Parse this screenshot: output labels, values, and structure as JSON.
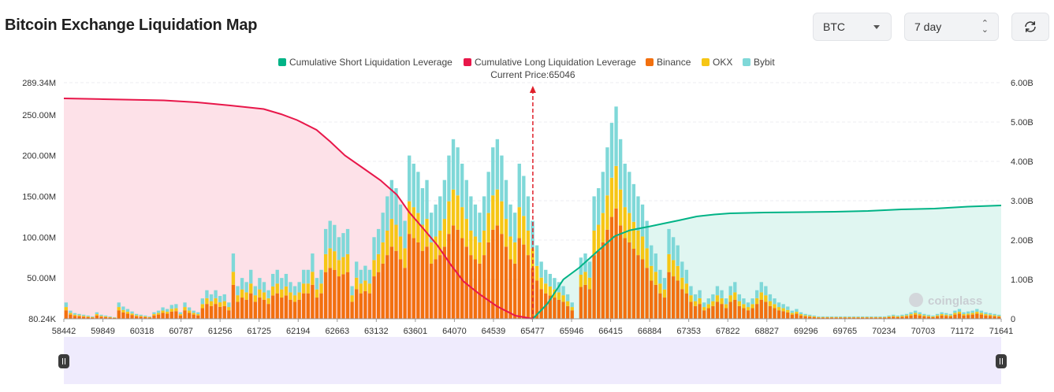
{
  "header": {
    "title": "Bitcoin Exchange Liquidation Map",
    "symbol_select": "BTC",
    "range_select": "7 day",
    "refresh_icon": "refresh-icon"
  },
  "colors": {
    "short_cum": "#00b386",
    "long_cum": "#e8174a",
    "binance": "#f2700f",
    "okx": "#f6c615",
    "bybit": "#7fd8d8",
    "long_fill": "#fde1e8",
    "short_fill": "#e0f6f1"
  },
  "watermark": "coinglass",
  "chart_data": {
    "type": "bar",
    "current_price_label": "Current Price:65046",
    "current_price": 65046,
    "legend": [
      {
        "name": "Cumulative Short Liquidation Leverage",
        "color": "#00b386"
      },
      {
        "name": "Cumulative Long Liquidation Leverage",
        "color": "#e8174a"
      },
      {
        "name": "Binance",
        "color": "#f2700f"
      },
      {
        "name": "OKX",
        "color": "#f6c615"
      },
      {
        "name": "Bybit",
        "color": "#7fd8d8"
      }
    ],
    "x_range": [
      58442,
      71641
    ],
    "x_ticks": [
      58442,
      59849,
      60318,
      60787,
      61256,
      61725,
      62194,
      62663,
      63132,
      63601,
      64070,
      64539,
      65477,
      65946,
      66415,
      66884,
      67353,
      67822,
      68827,
      69296,
      69765,
      70234,
      70703,
      71172,
      71641
    ],
    "y_left_range": [
      80240,
      289340000
    ],
    "y_left_ticks": [
      {
        "value": 80240,
        "label": "80.24K"
      },
      {
        "value": 50000000,
        "label": "50.00M"
      },
      {
        "value": 100000000,
        "label": "100.00M"
      },
      {
        "value": 150000000,
        "label": "150.00M"
      },
      {
        "value": 200000000,
        "label": "200.00M"
      },
      {
        "value": 250000000,
        "label": "250.00M"
      },
      {
        "value": 289340000,
        "label": "289.34M"
      }
    ],
    "y_right_range": [
      0,
      6000000000
    ],
    "y_right_ticks": [
      {
        "value": 0,
        "label": "0"
      },
      {
        "value": 1000000000,
        "label": "1.00B"
      },
      {
        "value": 2000000000,
        "label": "2.00B"
      },
      {
        "value": 3000000000,
        "label": "3.00B"
      },
      {
        "value": 4000000000,
        "label": "4.00B"
      },
      {
        "value": 5000000000,
        "label": "5.00B"
      },
      {
        "value": 6000000000,
        "label": "6.00B"
      }
    ],
    "bars_totals_millions": [
      20,
      10,
      7,
      6,
      5,
      4,
      3,
      8,
      5,
      4,
      3,
      2,
      20,
      15,
      12,
      9,
      6,
      5,
      4,
      3,
      8,
      10,
      14,
      12,
      17,
      18,
      8,
      20,
      14,
      10,
      8,
      25,
      35,
      30,
      35,
      28,
      30,
      20,
      80,
      40,
      50,
      45,
      60,
      40,
      50,
      45,
      35,
      55,
      60,
      50,
      55,
      45,
      40,
      45,
      60,
      60,
      80,
      50,
      60,
      110,
      120,
      115,
      100,
      105,
      110,
      40,
      70,
      60,
      65,
      60,
      100,
      110,
      130,
      150,
      170,
      160,
      140,
      120,
      200,
      190,
      180,
      160,
      170,
      130,
      140,
      150,
      170,
      200,
      220,
      210,
      190,
      170,
      150,
      140,
      130,
      150,
      180,
      210,
      220,
      200,
      170,
      140,
      130,
      190,
      175,
      150,
      120,
      90,
      70,
      60,
      55,
      50,
      45,
      40,
      30,
      20,
      0,
      75,
      80,
      70,
      150,
      160,
      180,
      210,
      240,
      260,
      220,
      190,
      180,
      165,
      150,
      140,
      120,
      90,
      80,
      60,
      50,
      110,
      100,
      90,
      70,
      60,
      40,
      30,
      35,
      20,
      25,
      30,
      40,
      35,
      25,
      40,
      45,
      30,
      25,
      20,
      25,
      35,
      45,
      40,
      30,
      25,
      20,
      18,
      15,
      10,
      12,
      8,
      6,
      5,
      4,
      3,
      3,
      3,
      3,
      3,
      3,
      3,
      3,
      3,
      3,
      3,
      3,
      3,
      3,
      3,
      3,
      4,
      5,
      4,
      5,
      6,
      8,
      10,
      8,
      6,
      5,
      4,
      6,
      8,
      7,
      6,
      10,
      12,
      8,
      9,
      10,
      12,
      10,
      8,
      7,
      6,
      5
    ],
    "long_cumulative_billions": [
      [
        58442,
        5.6
      ],
      [
        59000,
        5.58
      ],
      [
        59849,
        5.55
      ],
      [
        60318,
        5.5
      ],
      [
        60787,
        5.42
      ],
      [
        61256,
        5.33
      ],
      [
        61500,
        5.2
      ],
      [
        61725,
        5.05
      ],
      [
        62000,
        4.8
      ],
      [
        62194,
        4.5
      ],
      [
        62400,
        4.15
      ],
      [
        62663,
        3.82
      ],
      [
        62900,
        3.52
      ],
      [
        63132,
        3.15
      ],
      [
        63300,
        2.72
      ],
      [
        63500,
        2.3
      ],
      [
        63700,
        1.87
      ],
      [
        63900,
        1.35
      ],
      [
        64070,
        0.95
      ],
      [
        64300,
        0.62
      ],
      [
        64539,
        0.32
      ],
      [
        64800,
        0.08
      ],
      [
        65046,
        0
      ]
    ],
    "short_cumulative_billions": [
      [
        65046,
        0
      ],
      [
        65250,
        0.38
      ],
      [
        65477,
        1.0
      ],
      [
        65700,
        1.3
      ],
      [
        65946,
        1.7
      ],
      [
        66200,
        2.1
      ],
      [
        66415,
        2.25
      ],
      [
        66700,
        2.35
      ],
      [
        66884,
        2.42
      ],
      [
        67100,
        2.5
      ],
      [
        67353,
        2.6
      ],
      [
        67600,
        2.65
      ],
      [
        67822,
        2.68
      ],
      [
        68300,
        2.7
      ],
      [
        68827,
        2.71
      ],
      [
        69296,
        2.72
      ],
      [
        69765,
        2.74
      ],
      [
        70234,
        2.78
      ],
      [
        70703,
        2.8
      ],
      [
        71172,
        2.85
      ],
      [
        71641,
        2.88
      ]
    ]
  }
}
